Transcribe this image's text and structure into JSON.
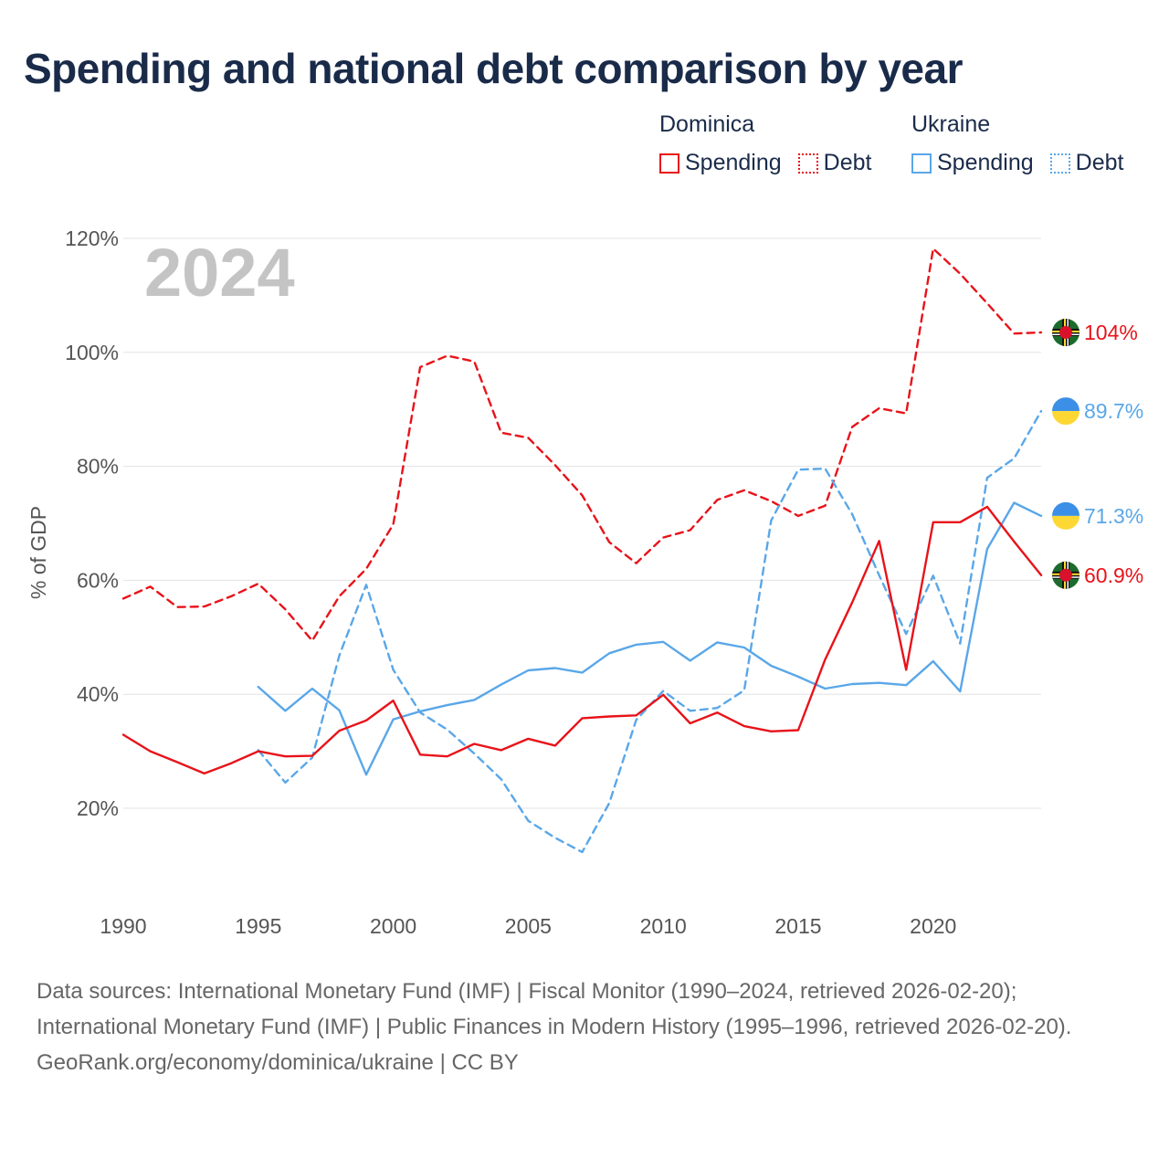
{
  "title": "Spending and national debt comparison by year",
  "year_label": "2024",
  "legend": {
    "dominica": {
      "title": "Dominica",
      "spending_label": "Spending",
      "debt_label": "Debt",
      "color": "#e8131a"
    },
    "ukraine": {
      "title": "Ukraine",
      "spending_label": "Spending",
      "debt_label": "Debt",
      "color": "#5aa7e8"
    }
  },
  "end_labels": {
    "dominica_debt": "104%",
    "ukraine_debt": "89.7%",
    "ukraine_spending": "71.3%",
    "dominica_spending": "60.9%"
  },
  "footer": {
    "source_line": "Data sources: International Monetary Fund (IMF) | Fiscal Monitor (1990–2024, retrieved 2026-02-20); International Monetary Fund (IMF) | Public Finances in Modern History (1995–1996, retrieved 2026-02-20).",
    "credit_line": "GeoRank.org/economy/dominica/ukraine | CC BY"
  },
  "chart_data": {
    "type": "line",
    "title": "Spending and national debt comparison by year",
    "xlabel": "",
    "ylabel": "% of GDP",
    "xlim": [
      1990,
      2024
    ],
    "ylim": [
      0,
      120
    ],
    "x_ticks": [
      1990,
      1995,
      2000,
      2005,
      2010,
      2015,
      2020
    ],
    "y_ticks": [
      20,
      40,
      60,
      80,
      100,
      120
    ],
    "y_tick_labels": [
      "20%",
      "40%",
      "60%",
      "80%",
      "100%",
      "120%"
    ],
    "series": [
      {
        "name": "Dominica Debt",
        "country": "Dominica",
        "metric": "Debt",
        "dashed": true,
        "color": "#e8131a",
        "x": [
          1990,
          1991,
          1992,
          1993,
          1994,
          1995,
          1996,
          1997,
          1998,
          1999,
          2000,
          2001,
          2002,
          2003,
          2004,
          2005,
          2006,
          2007,
          2008,
          2009,
          2010,
          2011,
          2012,
          2013,
          2014,
          2015,
          2016,
          2017,
          2018,
          2019,
          2020,
          2021,
          2022,
          2023,
          2024
        ],
        "values": [
          56.8,
          58.9,
          55.3,
          55.4,
          57.2,
          59.4,
          54.9,
          49.4,
          57.2,
          62.0,
          69.8,
          97.4,
          99.4,
          98.4,
          85.9,
          85.0,
          80.2,
          74.9,
          66.7,
          63.0,
          67.5,
          68.8,
          74.1,
          75.8,
          73.9,
          71.3,
          73.1,
          86.9,
          90.2,
          89.3,
          118.2,
          113.8,
          108.6,
          103.3,
          103.5
        ]
      },
      {
        "name": "Dominica Spending",
        "country": "Dominica",
        "metric": "Spending",
        "dashed": false,
        "color": "#e8131a",
        "x": [
          1990,
          1991,
          1992,
          1993,
          1994,
          1995,
          1996,
          1997,
          1998,
          1999,
          2000,
          2001,
          2002,
          2003,
          2004,
          2005,
          2006,
          2007,
          2008,
          2009,
          2010,
          2011,
          2012,
          2013,
          2014,
          2015,
          2016,
          2017,
          2018,
          2019,
          2020,
          2021,
          2022,
          2023,
          2024
        ],
        "values": [
          32.9,
          30.0,
          28.1,
          26.1,
          27.9,
          30.0,
          29.1,
          29.2,
          33.6,
          35.4,
          38.9,
          29.4,
          29.1,
          31.3,
          30.2,
          32.2,
          31.0,
          35.8,
          36.1,
          36.3,
          39.9,
          34.9,
          36.8,
          34.4,
          33.5,
          33.7,
          46.1,
          56.1,
          66.9,
          44.3,
          70.2,
          70.2,
          72.9,
          66.8,
          60.9
        ]
      },
      {
        "name": "Ukraine Debt",
        "country": "Ukraine",
        "metric": "Debt",
        "dashed": true,
        "color": "#5aa7e8",
        "x": [
          1995,
          1996,
          1997,
          1998,
          1999,
          2000,
          2001,
          2002,
          2003,
          2004,
          2005,
          2006,
          2007,
          2008,
          2009,
          2010,
          2011,
          2012,
          2013,
          2014,
          2015,
          2016,
          2017,
          2018,
          2019,
          2020,
          2021,
          2022,
          2023,
          2024
        ],
        "values": [
          30.2,
          24.5,
          28.9,
          46.8,
          59.2,
          44.3,
          36.8,
          33.8,
          29.6,
          25.1,
          17.8,
          14.8,
          12.3,
          20.9,
          35.5,
          40.6,
          37.1,
          37.6,
          40.7,
          70.5,
          79.4,
          79.6,
          71.6,
          60.9,
          50.6,
          60.8,
          48.9,
          78.0,
          81.4,
          89.7
        ]
      },
      {
        "name": "Ukraine Spending",
        "country": "Ukraine",
        "metric": "Spending",
        "dashed": false,
        "color": "#5aa7e8",
        "x": [
          1995,
          1996,
          1997,
          1998,
          1999,
          2000,
          2001,
          2002,
          2003,
          2004,
          2005,
          2006,
          2007,
          2008,
          2009,
          2010,
          2011,
          2012,
          2013,
          2014,
          2015,
          2016,
          2017,
          2018,
          2019,
          2020,
          2021,
          2022,
          2023,
          2024
        ],
        "values": [
          41.3,
          37.1,
          41.0,
          37.2,
          25.9,
          35.6,
          37.0,
          38.1,
          39.0,
          41.7,
          44.2,
          44.6,
          43.8,
          47.2,
          48.7,
          49.2,
          45.9,
          49.1,
          48.2,
          45.0,
          43.1,
          41.0,
          41.8,
          42.0,
          41.6,
          45.8,
          40.5,
          65.5,
          73.6,
          71.3
        ]
      }
    ]
  }
}
